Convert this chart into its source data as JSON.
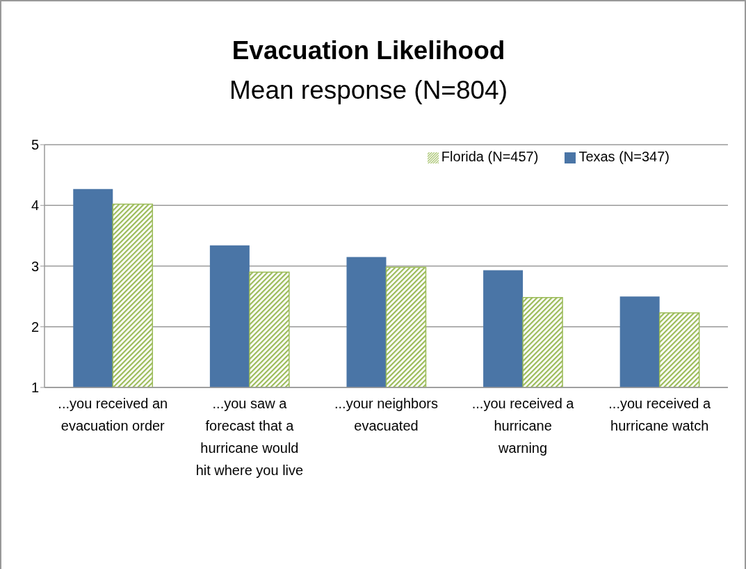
{
  "chart_data": {
    "type": "bar",
    "title": "Evacuation Likelihood",
    "subtitle": "Mean response (N=804)",
    "categories": [
      "...you received an evacuation order",
      "...you saw a forecast that a hurricane would hit where you live",
      "...your neighbors evacuated",
      "...you received a hurricane warning",
      "...you received a hurricane watch"
    ],
    "series": [
      {
        "name": "Texas (N=347)",
        "color": "#4a75a6",
        "values": [
          4.27,
          3.34,
          3.15,
          2.93,
          2.5
        ]
      },
      {
        "name": "Florida (N=457)",
        "color": "#9bbb59",
        "values": [
          4.02,
          2.9,
          2.98,
          2.48,
          2.23
        ]
      }
    ],
    "ylim": [
      1,
      5
    ],
    "yticks": [
      1,
      2,
      3,
      4,
      5
    ],
    "grid": "y",
    "legend": "top right"
  }
}
